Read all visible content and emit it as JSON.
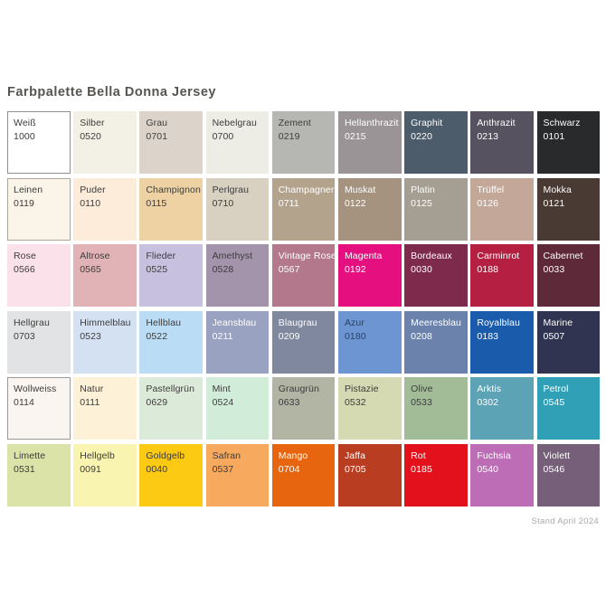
{
  "title": "Farbpalette Bella Donna Jersey",
  "footer": {
    "text": "Stand April 2024"
  },
  "colors": {
    "page_background": "#ffffff",
    "title_text": "#55544f",
    "footer_text": "#a9a9a9",
    "dark_label": "#3d3c3c",
    "light_label": "#ffffff"
  },
  "palette": {
    "columns": 9,
    "swatches": [
      {
        "name": "Weiß",
        "code": "1000",
        "bg": "#ffffff",
        "text": "#3d3c3c",
        "border": "#8f8f8f"
      },
      {
        "name": "Silber",
        "code": "0520",
        "bg": "#f3f0e5",
        "text": "#3d3c3c"
      },
      {
        "name": "Grau",
        "code": "0701",
        "bg": "#dcd4ca",
        "text": "#3d3c3c"
      },
      {
        "name": "Nebelgrau",
        "code": "0700",
        "bg": "#edece5",
        "text": "#3d3c3c"
      },
      {
        "name": "Zement",
        "code": "0219",
        "bg": "#b6b7b3",
        "text": "#3d3c3c"
      },
      {
        "name": "Hellanthrazit",
        "code": "0215",
        "bg": "#9b9497",
        "text": "#ffffff"
      },
      {
        "name": "Graphit",
        "code": "0220",
        "bg": "#4d5c6b",
        "text": "#ffffff"
      },
      {
        "name": "Anthrazit",
        "code": "0213",
        "bg": "#575260",
        "text": "#ffffff"
      },
      {
        "name": "Schwarz",
        "code": "0101",
        "bg": "#282a2c",
        "text": "#ffffff"
      },
      {
        "name": "Leinen",
        "code": "0119",
        "bg": "#faf5e8",
        "text": "#3d3c3c",
        "border": "#aba796"
      },
      {
        "name": "Puder",
        "code": "0110",
        "bg": "#fcecd9",
        "text": "#3d3c3c"
      },
      {
        "name": "Champignon",
        "code": "0115",
        "bg": "#eed2a4",
        "text": "#3d3c3c"
      },
      {
        "name": "Perlgrau",
        "code": "0710",
        "bg": "#d8d0c1",
        "text": "#3d3c3c"
      },
      {
        "name": "Champagner",
        "code": "0711",
        "bg": "#b4a38c",
        "text": "#ffffff"
      },
      {
        "name": "Muskat",
        "code": "0122",
        "bg": "#a5937f",
        "text": "#ffffff"
      },
      {
        "name": "Platin",
        "code": "0125",
        "bg": "#a49e93",
        "text": "#ffffff"
      },
      {
        "name": "Trüffel",
        "code": "0126",
        "bg": "#c3a899",
        "text": "#ffffff"
      },
      {
        "name": "Mokka",
        "code": "0121",
        "bg": "#493a34",
        "text": "#ffffff"
      },
      {
        "name": "Rose",
        "code": "0566",
        "bg": "#fbe2ea",
        "text": "#3d3c3c"
      },
      {
        "name": "Altrose",
        "code": "0565",
        "bg": "#e2b3b6",
        "text": "#3d3c3c"
      },
      {
        "name": "Flieder",
        "code": "0525",
        "bg": "#c7c1df",
        "text": "#3d3c3c"
      },
      {
        "name": "Amethyst",
        "code": "0528",
        "bg": "#a394ac",
        "text": "#3d3c3c"
      },
      {
        "name": "Vintage Rose",
        "code": "0567",
        "bg": "#b3788b",
        "text": "#ffffff"
      },
      {
        "name": "Magenta",
        "code": "0192",
        "bg": "#e50f7f",
        "text": "#ffffff"
      },
      {
        "name": "Bordeaux",
        "code": "0030",
        "bg": "#7d2a4c",
        "text": "#ffffff"
      },
      {
        "name": "Carminrot",
        "code": "0188",
        "bg": "#b51f41",
        "text": "#ffffff"
      },
      {
        "name": "Cabernet",
        "code": "0033",
        "bg": "#5e2938",
        "text": "#ffffff"
      },
      {
        "name": "Hellgrau",
        "code": "0703",
        "bg": "#e2e3e4",
        "text": "#3d3c3c"
      },
      {
        "name": "Himmelblau",
        "code": "0523",
        "bg": "#d3e1f3",
        "text": "#3d3c3c"
      },
      {
        "name": "Hellblau",
        "code": "0522",
        "bg": "#badcf5",
        "text": "#3d3c3c"
      },
      {
        "name": "Jeansblau",
        "code": "0211",
        "bg": "#99a2c1",
        "text": "#ffffff"
      },
      {
        "name": "Blaugrau",
        "code": "0209",
        "bg": "#7f889f",
        "text": "#ffffff"
      },
      {
        "name": "Azur",
        "code": "0180",
        "bg": "#6c95d1",
        "text": "#2a4268"
      },
      {
        "name": "Meeresblau",
        "code": "0208",
        "bg": "#6b82ac",
        "text": "#ffffff"
      },
      {
        "name": "Royalblau",
        "code": "0183",
        "bg": "#1a5bac",
        "text": "#ffffff"
      },
      {
        "name": "Marine",
        "code": "0507",
        "bg": "#313450",
        "text": "#ffffff"
      },
      {
        "name": "Wollweiss",
        "code": "0114",
        "bg": "#faf5f1",
        "text": "#3d3c3c",
        "border": "#9a9a9a"
      },
      {
        "name": "Natur",
        "code": "0111",
        "bg": "#fdf2d7",
        "text": "#3d3c3c"
      },
      {
        "name": "Pastellgrün",
        "code": "0629",
        "bg": "#dcead9",
        "text": "#3d3c3c"
      },
      {
        "name": "Mint",
        "code": "0524",
        "bg": "#d2ecda",
        "text": "#3d3c3c"
      },
      {
        "name": "Graugrün",
        "code": "0633",
        "bg": "#b2b4a4",
        "text": "#3d3c3c"
      },
      {
        "name": "Pistazie",
        "code": "0532",
        "bg": "#d5dab3",
        "text": "#3d3c3c"
      },
      {
        "name": "Olive",
        "code": "0533",
        "bg": "#a2bc98",
        "text": "#3d3c3c"
      },
      {
        "name": "Arktis",
        "code": "0302",
        "bg": "#5ca3b5",
        "text": "#ffffff"
      },
      {
        "name": "Petrol",
        "code": "0545",
        "bg": "#2fa0b6",
        "text": "#ffffff"
      },
      {
        "name": "Limette",
        "code": "0531",
        "bg": "#dce3a8",
        "text": "#3d3c3c"
      },
      {
        "name": "Hellgelb",
        "code": "0091",
        "bg": "#f9f5b1",
        "text": "#3d3c3c"
      },
      {
        "name": "Goldgelb",
        "code": "0040",
        "bg": "#fcc913",
        "text": "#3d3c3c"
      },
      {
        "name": "Safran",
        "code": "0537",
        "bg": "#f7a95d",
        "text": "#3d3c3c"
      },
      {
        "name": "Mango",
        "code": "0704",
        "bg": "#e8650f",
        "text": "#ffffff"
      },
      {
        "name": "Jaffa",
        "code": "0705",
        "bg": "#b93d20",
        "text": "#ffffff"
      },
      {
        "name": "Rot",
        "code": "0185",
        "bg": "#e3111b",
        "text": "#ffffff"
      },
      {
        "name": "Fuchsia",
        "code": "0540",
        "bg": "#bd6db5",
        "text": "#ffffff"
      },
      {
        "name": "Violett",
        "code": "0546",
        "bg": "#766079",
        "text": "#ffffff"
      }
    ]
  }
}
